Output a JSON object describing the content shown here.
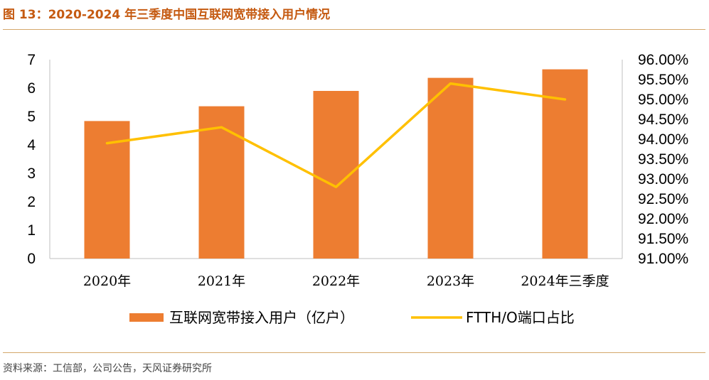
{
  "header": {
    "title": "图 13：2020-2024 年三季度中国互联网宽带接入用户情况"
  },
  "footer": {
    "source": "资料来源：工信部，公司公告，天风证券研究所"
  },
  "colors": {
    "bar": "#ed7d31",
    "line": "#ffc000",
    "title": "#c55a11",
    "rule": "#d4a76a"
  },
  "chart_data": {
    "type": "bar",
    "categories": [
      "2020年",
      "2021年",
      "2022年",
      "2023年",
      "2024年三季度"
    ],
    "series": [
      {
        "name": "互联网宽带接入用户（亿户）",
        "type": "bar",
        "axis": "left",
        "values": [
          4.84,
          5.36,
          5.9,
          6.36,
          6.66
        ]
      },
      {
        "name": "FTTH/O端口占比",
        "type": "line",
        "axis": "right",
        "values": [
          93.9,
          94.3,
          92.8,
          95.4,
          95.0
        ]
      }
    ],
    "y_left": {
      "ylim": [
        0,
        7
      ],
      "ticks": [
        "0",
        "1",
        "2",
        "3",
        "4",
        "5",
        "6",
        "7"
      ]
    },
    "y_right": {
      "ylim": [
        91.0,
        96.0
      ],
      "ticks": [
        "91.00%",
        "91.50%",
        "92.00%",
        "92.50%",
        "93.00%",
        "93.50%",
        "94.00%",
        "94.50%",
        "95.00%",
        "95.50%",
        "96.00%"
      ]
    },
    "legend_position": "bottom",
    "grid": false
  }
}
